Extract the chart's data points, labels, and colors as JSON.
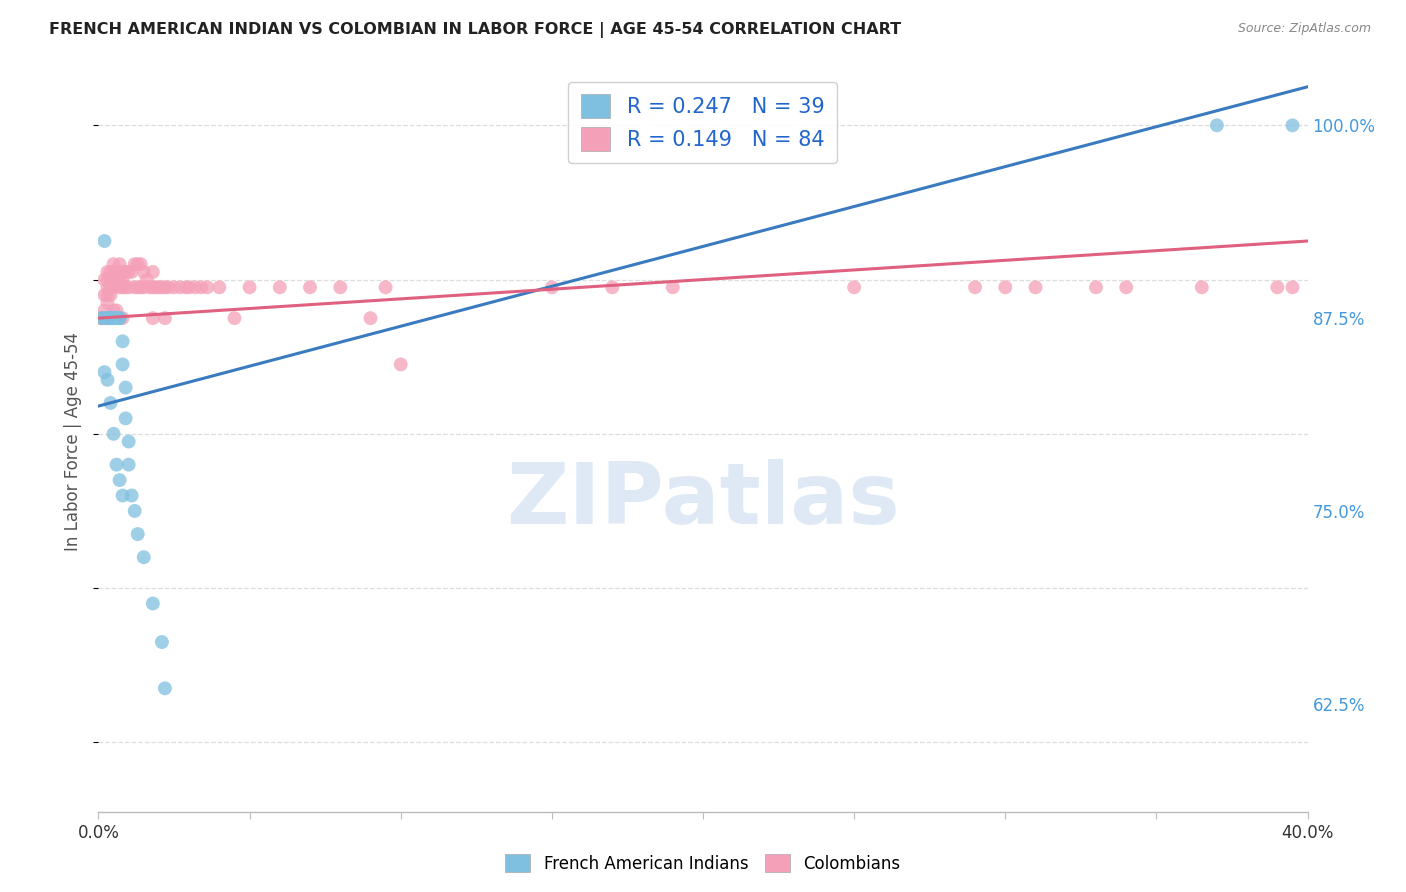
{
  "title": "FRENCH AMERICAN INDIAN VS COLOMBIAN IN LABOR FORCE | AGE 45-54 CORRELATION CHART",
  "source": "Source: ZipAtlas.com",
  "ylabel": "In Labor Force | Age 45-54",
  "xlim": [
    0.0,
    0.4
  ],
  "ylim": [
    0.555,
    1.035
  ],
  "xticks": [
    0.0,
    0.05,
    0.1,
    0.15,
    0.2,
    0.25,
    0.3,
    0.35,
    0.4
  ],
  "xticklabels": [
    "0.0%",
    "",
    "",
    "",
    "",
    "",
    "",
    "",
    "40.0%"
  ],
  "yticks": [
    0.625,
    0.75,
    0.875,
    1.0
  ],
  "yticklabels": [
    "62.5%",
    "75.0%",
    "87.5%",
    "100.0%"
  ],
  "R_blue": 0.247,
  "N_blue": 39,
  "R_pink": 0.149,
  "N_pink": 84,
  "blue_color": "#7fbfdf",
  "pink_color": "#f4a0b8",
  "blue_line_color": "#3a7bbf",
  "pink_line_color": "#e06080",
  "blue_line": [
    0.0,
    0.818,
    0.4,
    1.025
  ],
  "pink_line": [
    0.0,
    0.875,
    0.4,
    0.925
  ],
  "blue_scatter_x": [
    0.001,
    0.002,
    0.002,
    0.003,
    0.003,
    0.003,
    0.003,
    0.004,
    0.004,
    0.005,
    0.005,
    0.005,
    0.006,
    0.006,
    0.007,
    0.007,
    0.007,
    0.008,
    0.008,
    0.009,
    0.009,
    0.01,
    0.01,
    0.011,
    0.012,
    0.013,
    0.002,
    0.003,
    0.004,
    0.005,
    0.006,
    0.007,
    0.008,
    0.015,
    0.018,
    0.021,
    0.022,
    0.37,
    0.395
  ],
  "blue_scatter_y": [
    0.875,
    0.925,
    0.875,
    0.875,
    0.875,
    0.875,
    0.875,
    0.875,
    0.875,
    0.875,
    0.875,
    0.875,
    0.875,
    0.875,
    0.875,
    0.875,
    0.875,
    0.86,
    0.845,
    0.83,
    0.81,
    0.795,
    0.78,
    0.76,
    0.75,
    0.735,
    0.84,
    0.835,
    0.82,
    0.8,
    0.78,
    0.77,
    0.76,
    0.72,
    0.69,
    0.665,
    0.635,
    1.0,
    1.0
  ],
  "pink_scatter_x": [
    0.001,
    0.001,
    0.001,
    0.001,
    0.002,
    0.002,
    0.002,
    0.002,
    0.003,
    0.003,
    0.003,
    0.003,
    0.003,
    0.003,
    0.004,
    0.004,
    0.004,
    0.004,
    0.005,
    0.005,
    0.005,
    0.005,
    0.006,
    0.006,
    0.006,
    0.007,
    0.007,
    0.007,
    0.008,
    0.008,
    0.008,
    0.008,
    0.009,
    0.009,
    0.01,
    0.01,
    0.011,
    0.012,
    0.012,
    0.013,
    0.013,
    0.014,
    0.014,
    0.015,
    0.015,
    0.016,
    0.017,
    0.018,
    0.018,
    0.018,
    0.019,
    0.02,
    0.021,
    0.022,
    0.022,
    0.023,
    0.025,
    0.027,
    0.029,
    0.03,
    0.032,
    0.034,
    0.036,
    0.04,
    0.045,
    0.05,
    0.06,
    0.07,
    0.08,
    0.09,
    0.095,
    0.1,
    0.15,
    0.17,
    0.19,
    0.25,
    0.29,
    0.3,
    0.31,
    0.33,
    0.34,
    0.365,
    0.39,
    0.395
  ],
  "pink_scatter_y": [
    0.875,
    0.875,
    0.875,
    0.875,
    0.9,
    0.89,
    0.88,
    0.875,
    0.905,
    0.9,
    0.895,
    0.89,
    0.885,
    0.875,
    0.905,
    0.9,
    0.895,
    0.89,
    0.91,
    0.905,
    0.895,
    0.88,
    0.905,
    0.9,
    0.88,
    0.91,
    0.9,
    0.895,
    0.905,
    0.9,
    0.895,
    0.875,
    0.905,
    0.895,
    0.905,
    0.895,
    0.905,
    0.91,
    0.895,
    0.91,
    0.895,
    0.91,
    0.895,
    0.905,
    0.895,
    0.9,
    0.895,
    0.905,
    0.895,
    0.875,
    0.895,
    0.895,
    0.895,
    0.895,
    0.875,
    0.895,
    0.895,
    0.895,
    0.895,
    0.895,
    0.895,
    0.895,
    0.895,
    0.895,
    0.875,
    0.895,
    0.895,
    0.895,
    0.895,
    0.875,
    0.895,
    0.845,
    0.895,
    0.895,
    0.895,
    0.895,
    0.895,
    0.895,
    0.895,
    0.895,
    0.895,
    0.895,
    0.895,
    0.895
  ],
  "background_color": "#ffffff",
  "grid_color": "#dddddd",
  "figsize": [
    14.06,
    8.92
  ],
  "dpi": 100
}
